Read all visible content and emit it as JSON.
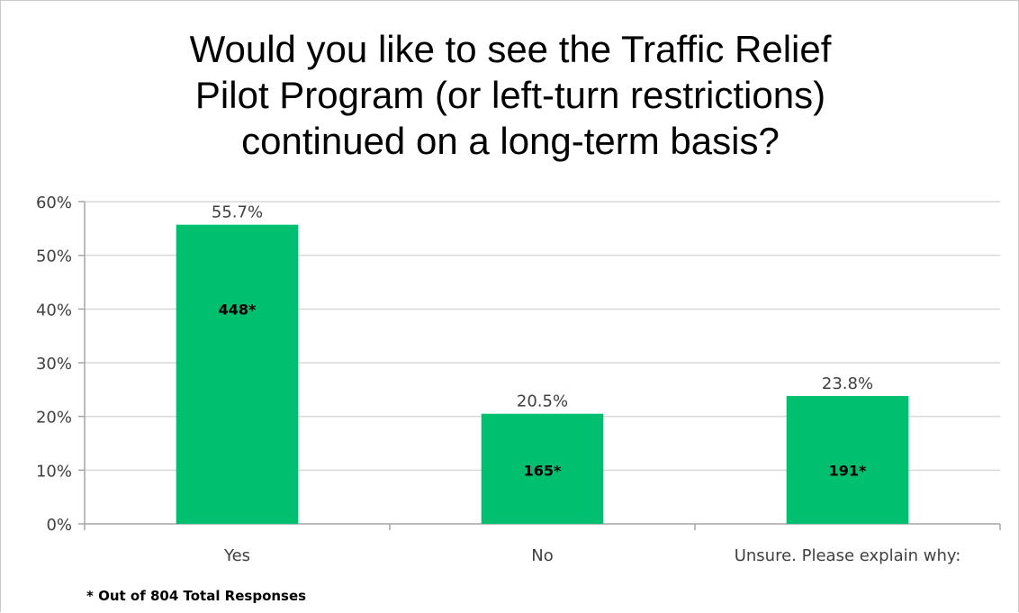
{
  "chart_data": {
    "type": "bar",
    "title": "Would you like to see the Traffic Relief Pilot Program (or left-turn restrictions) continued on a long-term basis?",
    "title_lines": [
      "Would you like to see the Traffic Relief",
      "Pilot Program (or left-turn restrictions)",
      "continued on a long-term basis?"
    ],
    "categories": [
      "Yes",
      "No",
      "Unsure. Please explain why:"
    ],
    "values": [
      55.7,
      20.5,
      23.8
    ],
    "value_labels": [
      "55.7%",
      "20.5%",
      "23.8%"
    ],
    "counts": [
      "448*",
      "165*",
      "191*"
    ],
    "ylim": [
      0,
      60
    ],
    "yticks": [
      "0%",
      "10%",
      "20%",
      "30%",
      "40%",
      "50%",
      "60%"
    ],
    "grid": true,
    "bar_color": "#00bf6f",
    "footnote": "* Out of 804 Total Responses"
  }
}
